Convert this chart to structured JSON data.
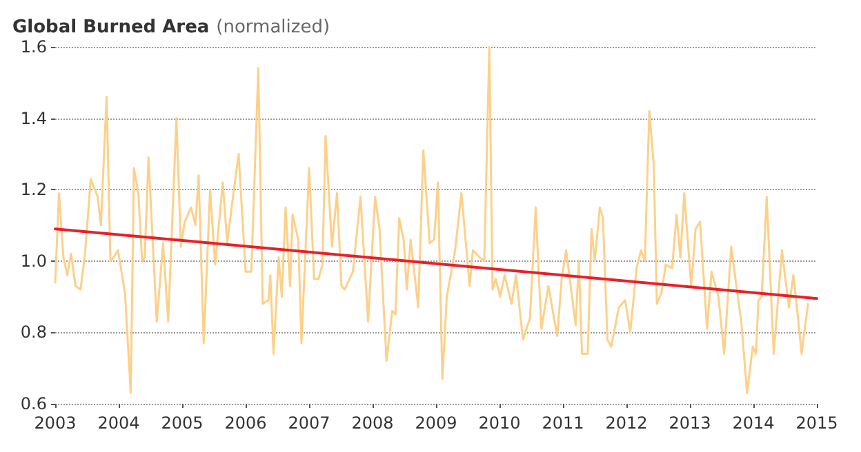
{
  "chart_data": {
    "type": "line",
    "title": "Global Burned Area",
    "subtitle": "(normalized)",
    "xlim": [
      2003,
      2015
    ],
    "xticks": [
      2003,
      2004,
      2005,
      2006,
      2007,
      2008,
      2009,
      2010,
      2011,
      2012,
      2013,
      2014,
      2015
    ],
    "ylim": [
      0.6,
      1.6
    ],
    "yticks": [
      0.6,
      0.8,
      {
        "value": 1,
        "label": "1.0"
      },
      1.2,
      1.4,
      1.6
    ],
    "grid": "y",
    "marker": "none",
    "line_style": "solid",
    "series": [
      {
        "color": "#fdd08a",
        "x": [
          2003.0,
          2003.06,
          2003.13,
          2003.19,
          2003.25,
          2003.32,
          2003.4,
          2003.47,
          2003.56,
          2003.67,
          2003.72,
          2003.81,
          2003.87,
          2003.92,
          2003.99,
          2004.1,
          2004.19,
          2004.24,
          2004.31,
          2004.37,
          2004.41,
          2004.47,
          2004.6,
          2004.7,
          2004.78,
          2004.91,
          2004.98,
          2005.04,
          2005.14,
          2005.21,
          2005.26,
          2005.34,
          2005.44,
          2005.52,
          2005.64,
          2005.71,
          2005.78,
          2005.89,
          2006.0,
          2006.09,
          2006.2,
          2006.27,
          2006.36,
          2006.39,
          2006.44,
          2006.52,
          2006.57,
          2006.63,
          2006.7,
          2006.74,
          2006.83,
          2006.88,
          2007.0,
          2007.08,
          2007.15,
          2007.21,
          2007.26,
          2007.36,
          2007.44,
          2007.51,
          2007.56,
          2007.69,
          2007.81,
          2007.93,
          2008.04,
          2008.11,
          2008.22,
          2008.31,
          2008.36,
          2008.42,
          2008.49,
          2008.54,
          2008.6,
          2008.72,
          2008.8,
          2008.9,
          2008.97,
          2009.03,
          2009.1,
          2009.17,
          2009.3,
          2009.4,
          2009.53,
          2009.58,
          2009.69,
          2009.76,
          2009.84,
          2009.89,
          2009.94,
          2010.01,
          2010.08,
          2010.19,
          2010.26,
          2010.37,
          2010.48,
          2010.57,
          2010.66,
          2010.77,
          2010.91,
          2010.98,
          2011.05,
          2011.2,
          2011.25,
          2011.3,
          2011.39,
          2011.45,
          2011.5,
          2011.58,
          2011.63,
          2011.7,
          2011.76,
          2011.88,
          2011.98,
          2012.06,
          2012.16,
          2012.23,
          2012.29,
          2012.36,
          2012.43,
          2012.48,
          2012.55,
          2012.62,
          2012.72,
          2012.79,
          2012.85,
          2012.91,
          2013.02,
          2013.09,
          2013.16,
          2013.27,
          2013.34,
          2013.45,
          2013.54,
          2013.65,
          2013.74,
          2013.81,
          2013.9,
          2013.99,
          2014.04,
          2014.08,
          2014.13,
          2014.21,
          2014.32,
          2014.45,
          2014.56,
          2014.63,
          2014.68,
          2014.76,
          2014.86
        ],
        "values": [
          0.94,
          1.19,
          1.01,
          0.96,
          1.02,
          0.93,
          0.92,
          1.02,
          1.23,
          1.18,
          1.1,
          1.46,
          1.0,
          1.01,
          1.03,
          0.91,
          0.63,
          1.26,
          1.19,
          1.0,
          1.01,
          1.29,
          0.83,
          1.05,
          0.83,
          1.4,
          1.04,
          1.11,
          1.15,
          1.1,
          1.24,
          0.77,
          1.2,
          0.99,
          1.22,
          1.05,
          1.15,
          1.3,
          0.97,
          0.97,
          1.54,
          0.88,
          0.89,
          0.96,
          0.74,
          1.01,
          0.9,
          1.15,
          0.93,
          1.13,
          1.06,
          0.77,
          1.26,
          0.95,
          0.95,
          0.99,
          1.35,
          1.04,
          1.19,
          0.93,
          0.92,
          0.97,
          1.18,
          0.83,
          1.18,
          1.09,
          0.72,
          0.86,
          0.85,
          1.12,
          1.06,
          0.92,
          1.06,
          0.87,
          1.31,
          1.05,
          1.06,
          1.22,
          0.67,
          0.9,
          1.03,
          1.19,
          0.93,
          1.03,
          1.01,
          1.0,
          1.6,
          0.92,
          0.95,
          0.9,
          0.96,
          0.88,
          0.96,
          0.78,
          0.84,
          1.15,
          0.81,
          0.93,
          0.79,
          0.95,
          1.03,
          0.82,
          1.0,
          0.74,
          0.74,
          1.09,
          1.0,
          1.15,
          1.12,
          0.78,
          0.76,
          0.87,
          0.89,
          0.8,
          0.98,
          1.03,
          1.0,
          1.42,
          1.27,
          0.88,
          0.91,
          0.99,
          0.98,
          1.13,
          1.01,
          1.19,
          0.93,
          1.09,
          1.11,
          0.81,
          0.97,
          0.9,
          0.74,
          1.04,
          0.92,
          0.83,
          0.63,
          0.76,
          0.74,
          0.89,
          0.9,
          1.18,
          0.74,
          1.03,
          0.87,
          0.96,
          0.88,
          0.74,
          0.88
        ]
      },
      {
        "color": "#e8202a",
        "x": [
          2003,
          2015
        ],
        "values": [
          1.09,
          0.895
        ]
      }
    ]
  }
}
